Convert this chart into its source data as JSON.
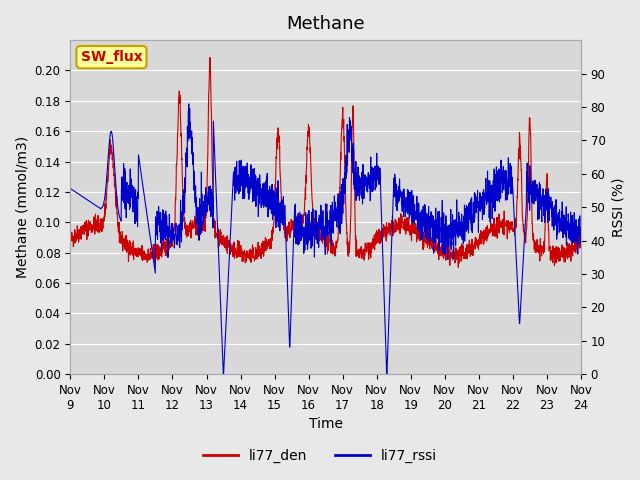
{
  "title": "Methane",
  "xlabel": "Time",
  "ylabel_left": "Methane (mmol/m3)",
  "ylabel_right": "RSSI (%)",
  "legend_label_red": "li77_den",
  "legend_label_blue": "li77_rssi",
  "annotation_text": "SW_flux",
  "ylim_left": [
    0.0,
    0.22
  ],
  "ylim_right": [
    0,
    100
  ],
  "yticks_left": [
    0.0,
    0.02,
    0.04,
    0.06,
    0.08,
    0.1,
    0.12,
    0.14,
    0.16,
    0.18,
    0.2
  ],
  "yticks_right": [
    0,
    10,
    20,
    30,
    40,
    50,
    60,
    70,
    80,
    90
  ],
  "xtick_labels": [
    "Nov 9",
    "Nov 10",
    "Nov 11",
    "Nov 12",
    "Nov 13",
    "Nov 14",
    "Nov 15",
    "Nov 16",
    "Nov 17",
    "Nov 18",
    "Nov 19",
    "Nov 20",
    "Nov 21",
    "Nov 22",
    "Nov 23",
    "Nov 24"
  ],
  "color_red": "#cc0000",
  "color_blue": "#0000cc",
  "bg_color": "#e8e8e8",
  "plot_bg_color": "#d8d8d8",
  "annotation_bg": "#ffff99",
  "annotation_border": "#c8a000",
  "grid_color": "#ffffff",
  "title_fontsize": 13,
  "label_fontsize": 10,
  "tick_fontsize": 8.5,
  "legend_fontsize": 10
}
